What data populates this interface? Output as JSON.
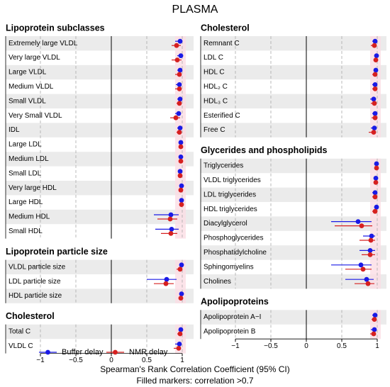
{
  "chart_data": {
    "type": "forest",
    "title": "PLASMA",
    "xlabel": "Spearman's Rank Correlation Coefficient (95% CI)",
    "note": "Filled markers: correlation >0.7",
    "xlim": [
      -1,
      1
    ],
    "xticks": [
      {
        "value": -1,
        "label": "−1"
      },
      {
        "value": -0.5,
        "label": "−0.5"
      },
      0,
      0.5,
      1
    ],
    "series": [
      {
        "name": "Buffer delay",
        "color": "#1a1ae6"
      },
      {
        "name": "NMR delay",
        "color": "#d62020"
      }
    ],
    "columns": [
      [
        {
          "title": "Lipoprotein subclasses",
          "categories": [
            "Extremely large VLDL",
            "Very large VLDL",
            "Large VLDL",
            "Medium VLDL",
            "Small VLDL",
            "Very Small VLDL",
            "IDL",
            "Large LDL",
            "Medium LDL",
            "Small LDL",
            "Very large HDL",
            "Large HDL",
            "Medium HDL",
            "Small HDL"
          ],
          "series": [
            {
              "values": [
                0.97,
                0.98,
                0.97,
                0.96,
                0.97,
                0.95,
                0.97,
                0.98,
                0.98,
                0.97,
                0.99,
                0.99,
                0.84,
                0.85
              ],
              "lower": [
                0.9,
                0.93,
                0.93,
                0.91,
                0.93,
                0.9,
                0.93,
                0.95,
                0.95,
                0.94,
                0.97,
                0.97,
                0.6,
                0.62
              ],
              "upper": [
                1.0,
                1.0,
                1.0,
                0.99,
                0.99,
                0.98,
                0.99,
                0.99,
                0.99,
                0.99,
                1.0,
                1.0,
                0.95,
                0.95
              ]
            },
            {
              "values": [
                0.92,
                0.93,
                0.96,
                0.96,
                0.96,
                0.91,
                0.96,
                0.98,
                0.98,
                0.97,
                0.98,
                0.99,
                0.83,
                0.84
              ],
              "lower": [
                0.85,
                0.85,
                0.9,
                0.9,
                0.92,
                0.83,
                0.92,
                0.95,
                0.95,
                0.94,
                0.96,
                0.97,
                0.65,
                0.7
              ],
              "upper": [
                0.98,
                0.99,
                0.99,
                0.99,
                0.99,
                0.97,
                0.99,
                0.99,
                0.99,
                0.99,
                0.99,
                1.0,
                0.93,
                0.93
              ]
            }
          ]
        },
        {
          "title": "Lipoprotein particle size",
          "categories": [
            "VLDL particle size",
            "LDL particle size",
            "HDL particle size"
          ],
          "series": [
            {
              "values": [
                0.99,
                0.78,
                0.99
              ],
              "lower": [
                0.97,
                0.5,
                0.97
              ],
              "upper": [
                1.0,
                0.92,
                1.0
              ]
            },
            {
              "values": [
                0.97,
                0.77,
                0.98
              ],
              "lower": [
                0.92,
                0.6,
                0.95
              ],
              "upper": [
                0.99,
                0.88,
                0.99
              ]
            }
          ]
        },
        {
          "title": "Cholesterol",
          "categories": [
            "Total C",
            "VLDL C"
          ],
          "series": [
            {
              "values": [
                0.98,
                0.96
              ],
              "lower": [
                0.95,
                0.9
              ],
              "upper": [
                0.99,
                0.99
              ]
            },
            {
              "values": [
                0.97,
                0.95
              ],
              "lower": [
                0.93,
                0.88
              ],
              "upper": [
                0.99,
                0.98
              ]
            }
          ]
        }
      ],
      [
        {
          "title": "Cholesterol",
          "categories": [
            "Remnant C",
            "LDL C",
            "HDL C",
            "HDL₂ C",
            "HDL₃ C",
            "Esterified C",
            "Free C"
          ],
          "series": [
            {
              "values": [
                0.97,
                0.99,
                0.98,
                0.97,
                0.95,
                0.97,
                0.96
              ],
              "lower": [
                0.93,
                0.97,
                0.95,
                0.93,
                0.9,
                0.93,
                0.91
              ],
              "upper": [
                0.99,
                1.0,
                0.99,
                0.99,
                0.98,
                0.99,
                0.99
              ]
            },
            {
              "values": [
                0.96,
                0.98,
                0.97,
                0.97,
                0.96,
                0.97,
                0.95
              ],
              "lower": [
                0.91,
                0.95,
                0.93,
                0.93,
                0.91,
                0.92,
                0.88
              ],
              "upper": [
                0.99,
                0.99,
                0.99,
                0.99,
                0.98,
                0.99,
                0.98
              ]
            }
          ]
        },
        {
          "title": "Glycerides and phospholipids",
          "categories": [
            "Triglycerides",
            "VLDL triglycerides",
            "LDL triglycerides",
            "HDL triglycerides",
            "Diacylglycerol",
            "Phosphoglycerides",
            "Phosphatidylcholine",
            "Sphingomyelins",
            "Cholines"
          ],
          "series": [
            {
              "values": [
                0.99,
                0.98,
                0.97,
                0.99,
                0.73,
                0.92,
                0.9,
                0.77,
                0.85
              ],
              "lower": [
                0.97,
                0.95,
                0.93,
                0.97,
                0.35,
                0.8,
                0.75,
                0.35,
                0.55
              ],
              "upper": [
                1.0,
                0.99,
                0.99,
                1.0,
                0.92,
                0.97,
                0.97,
                0.92,
                0.95
              ]
            },
            {
              "values": [
                0.99,
                0.98,
                0.97,
                0.97,
                0.78,
                0.91,
                0.9,
                0.8,
                0.87
              ],
              "lower": [
                0.97,
                0.95,
                0.93,
                0.93,
                0.4,
                0.75,
                0.78,
                0.55,
                0.68
              ],
              "upper": [
                1.0,
                0.99,
                0.99,
                0.99,
                0.93,
                0.97,
                0.97,
                0.92,
                0.96
              ]
            }
          ]
        },
        {
          "title": "Apolipoproteins",
          "categories": [
            "Apolipoprotein A−I",
            "Apolipoprotein B"
          ],
          "series": [
            {
              "values": [
                0.97,
                0.96
              ],
              "lower": [
                0.93,
                0.91
              ],
              "upper": [
                0.99,
                0.99
              ]
            },
            {
              "values": [
                0.96,
                0.95
              ],
              "lower": [
                0.92,
                0.9
              ],
              "upper": [
                0.99,
                0.98
              ]
            }
          ]
        }
      ]
    ]
  }
}
